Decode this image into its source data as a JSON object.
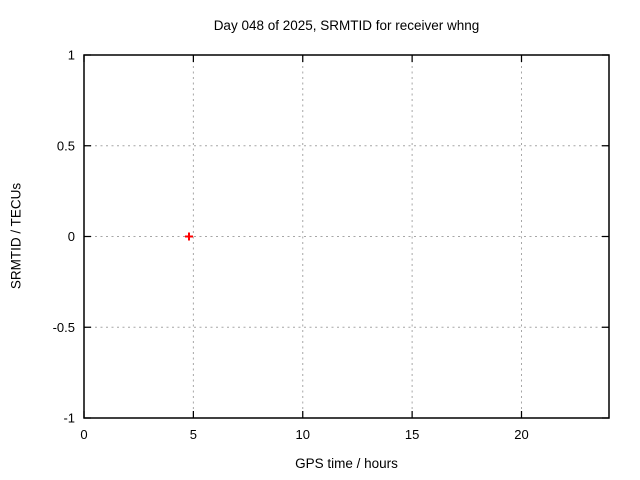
{
  "title": "Day 048 of 2025, SRMTID for receiver whng",
  "chart_data": {
    "type": "scatter",
    "title": "Day 048 of 2025, SRMTID for receiver whng",
    "xlabel": "GPS time / hours",
    "ylabel": "SRMTID / TECUs",
    "xlim": [
      0,
      24
    ],
    "ylim": [
      -1,
      1
    ],
    "xticks": [
      {
        "value": 0,
        "label": "0"
      },
      {
        "value": 5,
        "label": "5"
      },
      {
        "value": 10,
        "label": "10"
      },
      {
        "value": 15,
        "label": "15"
      },
      {
        "value": 20,
        "label": "20"
      }
    ],
    "yticks": [
      {
        "value": -1,
        "label": "-1"
      },
      {
        "value": -0.5,
        "label": "-0.5"
      },
      {
        "value": 0,
        "label": "0"
      },
      {
        "value": 0.5,
        "label": "0.5"
      },
      {
        "value": 1,
        "label": "1"
      }
    ],
    "grid": true,
    "legend_position": "none",
    "series": [
      {
        "name": "SRMTID",
        "marker": "plus",
        "color": "#ff0000",
        "points": [
          {
            "x": 4.8,
            "y": 0
          }
        ]
      }
    ],
    "colors": {
      "background": "#ffffff",
      "border": "#000000",
      "grid": "#a6a6a6",
      "tick": "#000000",
      "marker": "#ff0000"
    }
  }
}
